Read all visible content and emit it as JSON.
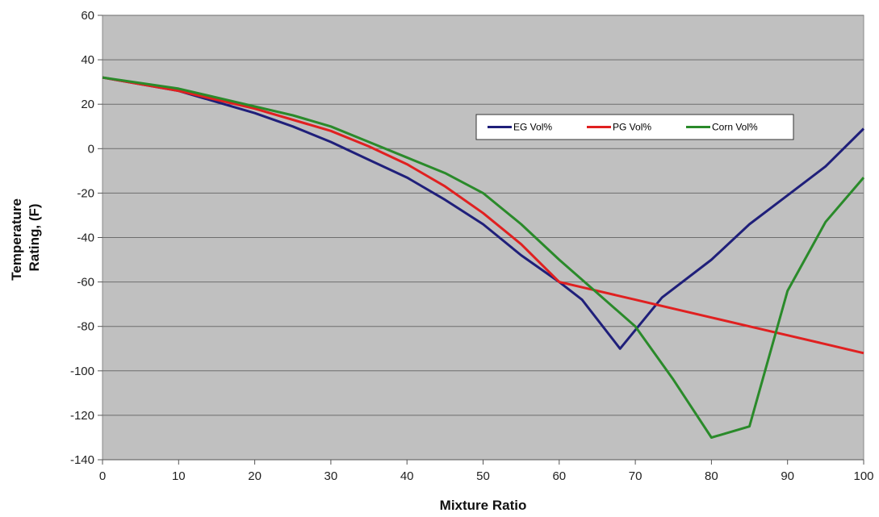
{
  "chart_data": {
    "type": "line",
    "xlabel": "Mixture Ratio",
    "ylabel_lines": [
      "Temperature",
      "Rating, (F)"
    ],
    "xlim": [
      0,
      100
    ],
    "ylim": [
      -140,
      60
    ],
    "x_ticks": [
      0,
      10,
      20,
      30,
      40,
      50,
      60,
      70,
      80,
      90,
      100
    ],
    "y_ticks": [
      60,
      40,
      20,
      0,
      -20,
      -40,
      -60,
      -80,
      -100,
      -120,
      -140
    ],
    "grid": "horizontal",
    "plot_background": "#c0c0c0",
    "legend_position": "upper-right inside",
    "series": [
      {
        "name": "EG Vol%",
        "color": "#1f1f7a",
        "x": [
          0,
          10,
          20,
          25,
          30,
          35,
          40,
          45,
          50,
          55,
          60,
          63,
          68,
          73.5,
          80,
          85,
          90,
          95,
          100
        ],
        "y": [
          32,
          26,
          16,
          10,
          3,
          -5,
          -13,
          -23,
          -34,
          -48,
          -60,
          -68,
          -90,
          -67,
          -50,
          -34,
          -21,
          -8,
          9
        ]
      },
      {
        "name": "PG Vol%",
        "color": "#e02020",
        "x": [
          0,
          10,
          20,
          25,
          30,
          35,
          40,
          45,
          50,
          55,
          60,
          65,
          70,
          75,
          80,
          85,
          90,
          95,
          100
        ],
        "y": [
          32,
          26,
          18,
          13,
          8,
          1,
          -7,
          -17,
          -29,
          -43,
          -60,
          -64,
          -68,
          -72,
          -76,
          -80,
          -84,
          -88,
          -92
        ]
      },
      {
        "name": "Corn Vol%",
        "color": "#2a8a2a",
        "x": [
          0,
          10,
          20,
          25,
          30,
          35,
          40,
          45,
          50,
          55,
          60,
          65,
          70,
          75,
          80,
          85,
          90,
          95,
          100
        ],
        "y": [
          32,
          27,
          19,
          15,
          10,
          3,
          -4,
          -11,
          -20,
          -34,
          -50,
          -65,
          -80,
          -104,
          -130,
          -125,
          -64,
          -33,
          -13
        ]
      }
    ]
  }
}
